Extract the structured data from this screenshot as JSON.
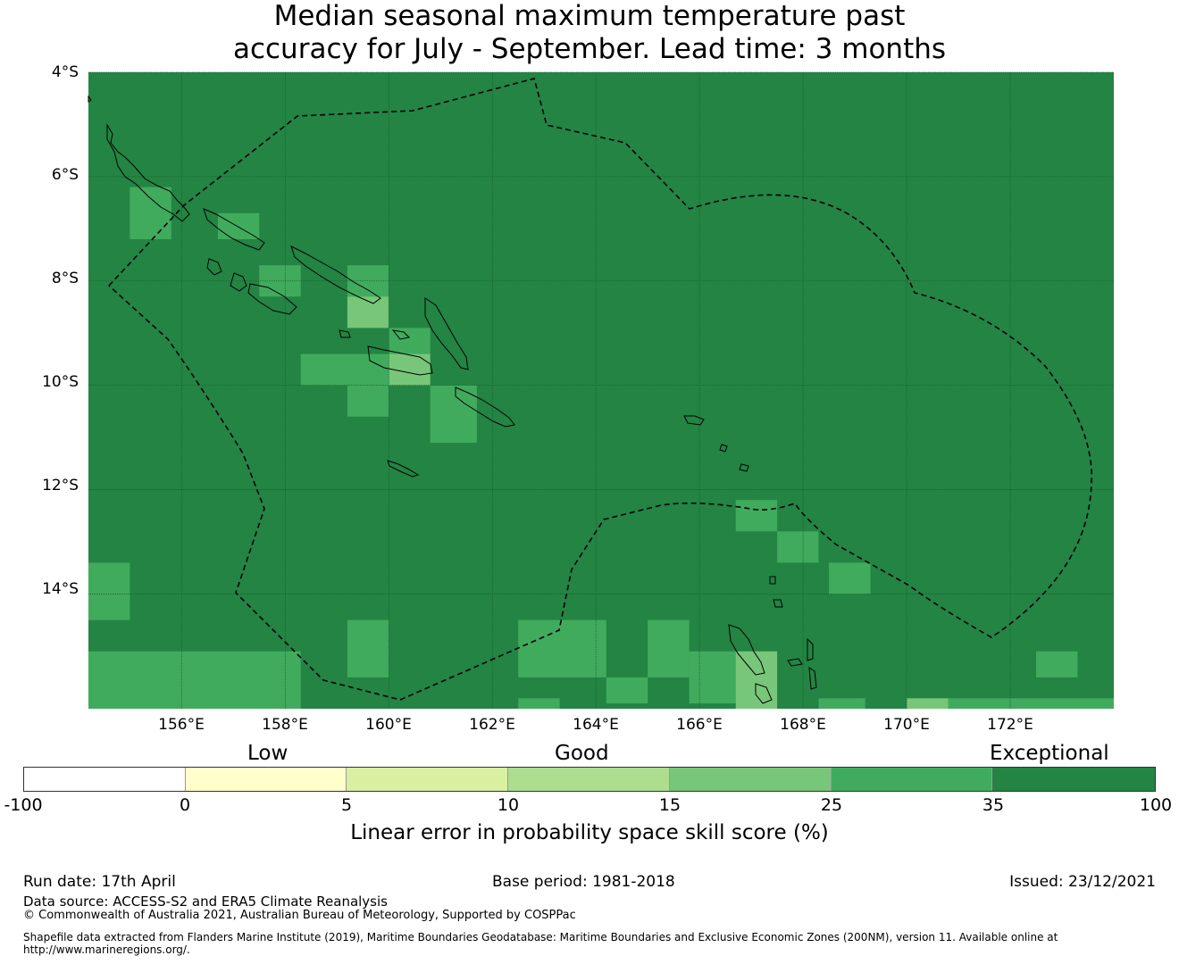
{
  "title": {
    "line1": "Median seasonal maximum temperature past",
    "line2": "accuracy for July - September. Lead time: 3 months"
  },
  "map": {
    "extent": {
      "lon_min": 154.2,
      "lon_max": 174.0,
      "lat_min": -16.2,
      "lat_max": -4.0
    },
    "base_value_range": "35-100",
    "lat_ticks": [
      {
        "value": -4,
        "label": "4°S"
      },
      {
        "value": -6,
        "label": "6°S"
      },
      {
        "value": -8,
        "label": "8°S"
      },
      {
        "value": -10,
        "label": "10°S"
      },
      {
        "value": -12,
        "label": "12°S"
      },
      {
        "value": -14,
        "label": "14°S"
      }
    ],
    "lon_ticks": [
      {
        "value": 156,
        "label": "156°E"
      },
      {
        "value": 158,
        "label": "158°E"
      },
      {
        "value": 160,
        "label": "160°E"
      },
      {
        "value": 162,
        "label": "162°E"
      },
      {
        "value": 164,
        "label": "164°E"
      },
      {
        "value": 166,
        "label": "166°E"
      },
      {
        "value": 168,
        "label": "168°E"
      },
      {
        "value": 170,
        "label": "170°E"
      },
      {
        "value": 172,
        "label": "172°E"
      }
    ],
    "cells": [
      {
        "lon": [
          155.0,
          155.8
        ],
        "lat": [
          -6.2,
          -7.2
        ],
        "bin": "25-35"
      },
      {
        "lon": [
          156.7,
          157.5
        ],
        "lat": [
          -6.7,
          -7.2
        ],
        "bin": "25-35"
      },
      {
        "lon": [
          157.5,
          158.3
        ],
        "lat": [
          -7.7,
          -8.3
        ],
        "bin": "25-35"
      },
      {
        "lon": [
          159.2,
          160.0
        ],
        "lat": [
          -7.7,
          -8.3
        ],
        "bin": "25-35"
      },
      {
        "lon": [
          159.2,
          160.0
        ],
        "lat": [
          -8.3,
          -8.9
        ],
        "bin": "15-25"
      },
      {
        "lon": [
          160.0,
          160.8
        ],
        "lat": [
          -8.9,
          -9.4
        ],
        "bin": "25-35"
      },
      {
        "lon": [
          158.3,
          160.0
        ],
        "lat": [
          -9.4,
          -10.0
        ],
        "bin": "25-35"
      },
      {
        "lon": [
          160.0,
          160.8
        ],
        "lat": [
          -9.4,
          -10.0
        ],
        "bin": "15-25"
      },
      {
        "lon": [
          159.2,
          160.0
        ],
        "lat": [
          -10.0,
          -10.6
        ],
        "bin": "25-35"
      },
      {
        "lon": [
          160.8,
          161.7
        ],
        "lat": [
          -10.0,
          -11.1
        ],
        "bin": "25-35"
      },
      {
        "lon": [
          166.7,
          167.5
        ],
        "lat": [
          -12.2,
          -12.8
        ],
        "bin": "25-35"
      },
      {
        "lon": [
          167.5,
          168.3
        ],
        "lat": [
          -12.8,
          -13.4
        ],
        "bin": "25-35"
      },
      {
        "lon": [
          168.5,
          169.3
        ],
        "lat": [
          -13.4,
          -14.0
        ],
        "bin": "25-35"
      },
      {
        "lon": [
          154.2,
          155.0
        ],
        "lat": [
          -13.4,
          -14.5
        ],
        "bin": "25-35"
      },
      {
        "lon": [
          159.2,
          160.0
        ],
        "lat": [
          -14.5,
          -15.6
        ],
        "bin": "25-35"
      },
      {
        "lon": [
          154.2,
          158.3
        ],
        "lat": [
          -15.1,
          -16.2
        ],
        "bin": "25-35"
      },
      {
        "lon": [
          162.5,
          164.2
        ],
        "lat": [
          -14.5,
          -15.6
        ],
        "bin": "25-35"
      },
      {
        "lon": [
          164.2,
          165.0
        ],
        "lat": [
          -15.6,
          -16.1
        ],
        "bin": "25-35"
      },
      {
        "lon": [
          165.0,
          165.8
        ],
        "lat": [
          -14.5,
          -15.6
        ],
        "bin": "25-35"
      },
      {
        "lon": [
          165.8,
          166.7
        ],
        "lat": [
          -15.1,
          -16.1
        ],
        "bin": "25-35"
      },
      {
        "lon": [
          166.7,
          167.5
        ],
        "lat": [
          -15.1,
          -16.2
        ],
        "bin": "15-25"
      },
      {
        "lon": [
          170.0,
          170.8
        ],
        "lat": [
          -16.0,
          -16.2
        ],
        "bin": "15-25"
      },
      {
        "lon": [
          172.5,
          173.3
        ],
        "lat": [
          -15.1,
          -15.6
        ],
        "bin": "25-35"
      },
      {
        "lon": [
          170.8,
          174.0
        ],
        "lat": [
          -16.0,
          -16.2
        ],
        "bin": "25-35"
      },
      {
        "lon": [
          162.5,
          163.3
        ],
        "lat": [
          -16.0,
          -16.2
        ],
        "bin": "25-35"
      },
      {
        "lon": [
          168.3,
          169.2
        ],
        "lat": [
          -16.0,
          -16.2
        ],
        "bin": "25-35"
      }
    ]
  },
  "legend": {
    "categories": {
      "low": "Low",
      "good": "Good",
      "exceptional": "Exceptional"
    },
    "bins": [
      {
        "range": "-100 to 0",
        "color": "#ffffff"
      },
      {
        "range": "0 to 5",
        "color": "#ffffcc"
      },
      {
        "range": "5 to 10",
        "color": "#d9f0a3"
      },
      {
        "range": "10 to 15",
        "color": "#addd8e"
      },
      {
        "range": "15 to 25",
        "color": "#78c679"
      },
      {
        "range": "25 to 35",
        "color": "#41ab5d"
      },
      {
        "range": "35 to 100",
        "color": "#238443"
      }
    ],
    "ticks": [
      "-100",
      "0",
      "5",
      "10",
      "15",
      "25",
      "35",
      "100"
    ],
    "title": "Linear error in probability space skill score (%)"
  },
  "footer": {
    "run_date": "Run date: 17th April",
    "base_period": "Base period: 1981-2018",
    "issued": "Issued: 23/12/2021",
    "data_source": "Data source: ACCESS-S2 and ERA5 Climate Reanalysis",
    "copyright": "© Commonwealth of Australia 2021, Australian Bureau of Meteorology, Supported by COSPPac",
    "shapefile": "Shapefile data extracted from Flanders Marine Institute (2019), Maritime Boundaries Geodatabase: Maritime Boundaries and Exclusive Economic Zones (200NM), version 11. Available online at http://www.marineregions.org/."
  },
  "colors": {
    "base": "#238443",
    "grid": "#16602e",
    "coast": "#000000",
    "eez": "#000000"
  },
  "icons": {
    "eez_boundary": "dashed-line",
    "coastline": "solid-line"
  }
}
